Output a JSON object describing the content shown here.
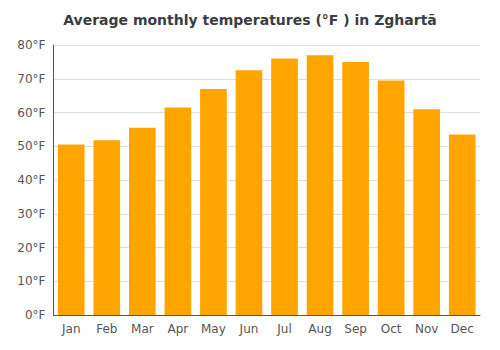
{
  "chart_data": {
    "type": "bar",
    "title": "Average monthly temperatures (°F ) in Zghartā",
    "categories": [
      "Jan",
      "Feb",
      "Mar",
      "Apr",
      "May",
      "Jun",
      "Jul",
      "Aug",
      "Sep",
      "Oct",
      "Nov",
      "Dec"
    ],
    "values": [
      50.5,
      51.8,
      55.5,
      61.5,
      67.0,
      72.5,
      76.0,
      77.0,
      75.0,
      69.5,
      61.0,
      53.5
    ],
    "color": "#FFA500",
    "ylim": [
      0,
      80
    ],
    "yticks": [
      {
        "value": 0,
        "label": "0°F"
      },
      {
        "value": 10,
        "label": "10°F"
      },
      {
        "value": 20,
        "label": "20°F"
      },
      {
        "value": 30,
        "label": "30°F"
      },
      {
        "value": 40,
        "label": "40°F"
      },
      {
        "value": 50,
        "label": "50°F"
      },
      {
        "value": 60,
        "label": "60°F"
      },
      {
        "value": 70,
        "label": "70°F"
      },
      {
        "value": 80,
        "label": "80°F"
      }
    ],
    "grid": true
  }
}
